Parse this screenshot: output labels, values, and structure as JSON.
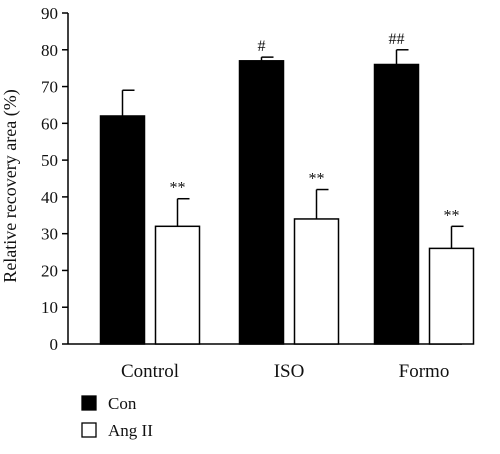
{
  "chart_data": {
    "type": "bar",
    "categories": [
      "Control",
      "ISO",
      "Formo"
    ],
    "series": [
      {
        "name": "Con",
        "values": [
          62,
          77,
          76
        ],
        "errors": [
          7,
          1,
          4
        ],
        "annotations": [
          "",
          "#",
          "##"
        ],
        "color": "#000000"
      },
      {
        "name": "Ang II",
        "values": [
          32,
          34,
          26
        ],
        "errors": [
          7.5,
          8,
          6
        ],
        "annotations": [
          "**",
          "**",
          "**"
        ],
        "color": "#ffffff"
      }
    ],
    "ylabel": "Relative recovery area (%)",
    "ylim": [
      0,
      90
    ],
    "yticks": [
      0,
      10,
      20,
      30,
      40,
      50,
      60,
      70,
      80,
      90
    ],
    "grid": false,
    "legend_position": "bottom-left"
  }
}
